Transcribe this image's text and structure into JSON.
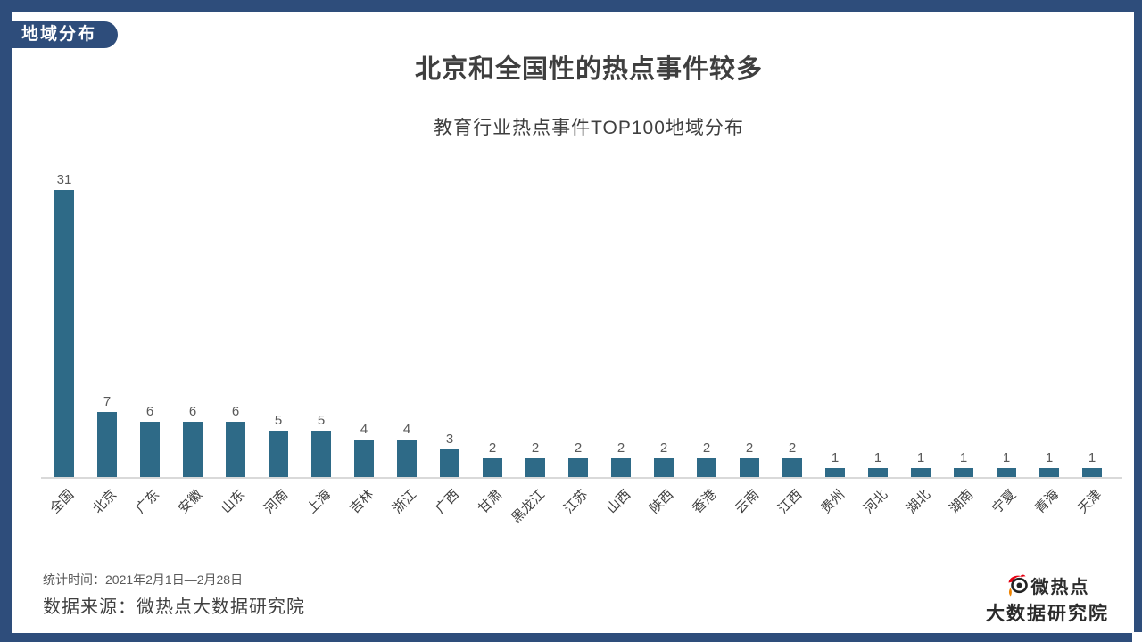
{
  "badge": {
    "label": "地域分布"
  },
  "header": {
    "title": "北京和全国性的热点事件较多",
    "subtitle": "教育行业热点事件TOP100地域分布"
  },
  "chart_data": {
    "type": "bar",
    "title": "教育行业热点事件TOP100地域分布",
    "categories": [
      "全国",
      "北京",
      "广东",
      "安徽",
      "山东",
      "河南",
      "上海",
      "吉林",
      "浙江",
      "广西",
      "甘肃",
      "黑龙江",
      "江苏",
      "山西",
      "陕西",
      "香港",
      "云南",
      "江西",
      "贵州",
      "河北",
      "湖北",
      "湖南",
      "宁夏",
      "青海",
      "天津"
    ],
    "values": [
      31,
      7,
      6,
      6,
      6,
      5,
      5,
      4,
      4,
      3,
      2,
      2,
      2,
      2,
      2,
      2,
      2,
      2,
      1,
      1,
      1,
      1,
      1,
      1,
      1
    ],
    "xlabel": "",
    "ylabel": "",
    "ylim": [
      0,
      31
    ],
    "grid": false,
    "legend": false,
    "value_labels": true,
    "bar_color": "#2e6a87",
    "label_rotation_deg": -45
  },
  "footer": {
    "stat_time": "统计时间：2021年2月1日—2月28日",
    "data_source": "数据来源：微热点大数据研究院"
  },
  "logo": {
    "brand": "微热点",
    "org": "大数据研究院",
    "icon": "weibo-eye-icon"
  },
  "colors": {
    "frame_navy": "#2e4d7b",
    "bar_teal": "#2e6a87",
    "title_text": "#3f3f3f",
    "value_text": "#595959",
    "axis_line": "#d9d9d9",
    "logo_red": "#e60012",
    "logo_orange": "#f08300"
  }
}
